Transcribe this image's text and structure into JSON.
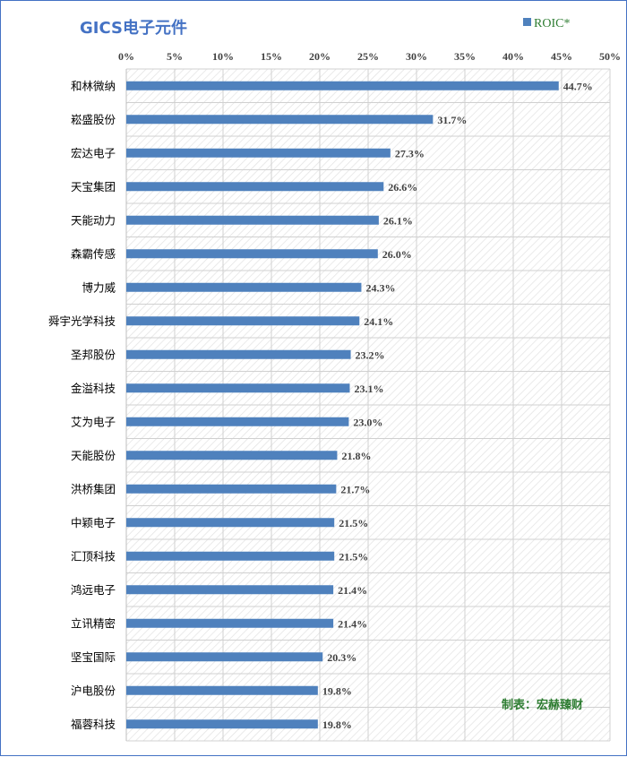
{
  "chart_data": {
    "type": "bar",
    "orientation": "horizontal",
    "title": "GICS电子元件",
    "legend_position": "top-right",
    "grid": true,
    "xlim": [
      0,
      50
    ],
    "x_ticks": [
      "0%",
      "5%",
      "10%",
      "15%",
      "20%",
      "25%",
      "30%",
      "35%",
      "40%",
      "45%",
      "50%"
    ],
    "categories": [
      "和林微纳",
      "崧盛股份",
      "宏达电子",
      "天宝集团",
      "天能动力",
      "森霸传感",
      "博力威",
      "舜宇光学科技",
      "圣邦股份",
      "金溢科技",
      "艾为电子",
      "天能股份",
      "洪桥集团",
      "中颖电子",
      "汇顶科技",
      "鸿远电子",
      "立讯精密",
      "坚宝国际",
      "沪电股份",
      "福蓉科技"
    ],
    "series": [
      {
        "name": "ROIC*",
        "color": "#4f81bd",
        "values": [
          44.7,
          31.7,
          27.3,
          26.6,
          26.1,
          26.0,
          24.3,
          24.1,
          23.2,
          23.1,
          23.0,
          21.8,
          21.7,
          21.5,
          21.5,
          21.4,
          21.4,
          20.3,
          19.8,
          19.8
        ],
        "labels": [
          "44.7%",
          "31.7%",
          "27.3%",
          "26.6%",
          "26.1%",
          "26.0%",
          "24.3%",
          "24.1%",
          "23.2%",
          "23.1%",
          "23.0%",
          "21.8%",
          "21.7%",
          "21.5%",
          "21.5%",
          "21.4%",
          "21.4%",
          "20.3%",
          "19.8%",
          "19.8%"
        ]
      }
    ],
    "annotation": "制表：宏赫臻财"
  }
}
